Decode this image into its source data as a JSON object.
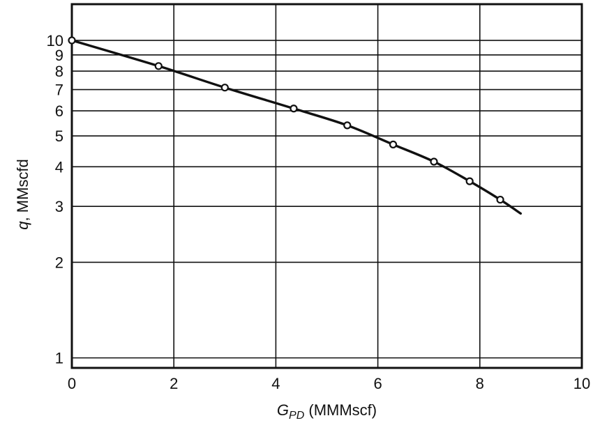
{
  "chart_data": {
    "type": "line",
    "xlabel": {
      "main": "G",
      "sub": "PD",
      "unit": " (MMMscf)"
    },
    "ylabel": {
      "main": "q",
      "unit": ", MMscfd"
    },
    "xlim": [
      0,
      10
    ],
    "ylim": [
      0.93,
      13
    ],
    "yscale": "log",
    "grid": true,
    "x_ticks": [
      0,
      2,
      4,
      6,
      8,
      10
    ],
    "y_ticks": [
      1,
      2,
      3,
      4,
      5,
      6,
      7,
      8,
      9,
      10
    ],
    "series": [
      {
        "points_x": [
          0,
          1.7,
          3.0,
          4.35,
          5.4,
          6.3,
          7.1,
          7.8,
          8.4
        ],
        "points_y": [
          10,
          8.3,
          7.1,
          6.1,
          5.4,
          4.7,
          4.15,
          3.6,
          3.15
        ],
        "curve_x": [
          0,
          1.7,
          3.0,
          4.35,
          5.4,
          6.3,
          7.1,
          7.8,
          8.4,
          8.8
        ],
        "curve_y": [
          10,
          8.3,
          7.1,
          6.1,
          5.4,
          4.7,
          4.15,
          3.6,
          3.15,
          2.85
        ]
      }
    ]
  }
}
